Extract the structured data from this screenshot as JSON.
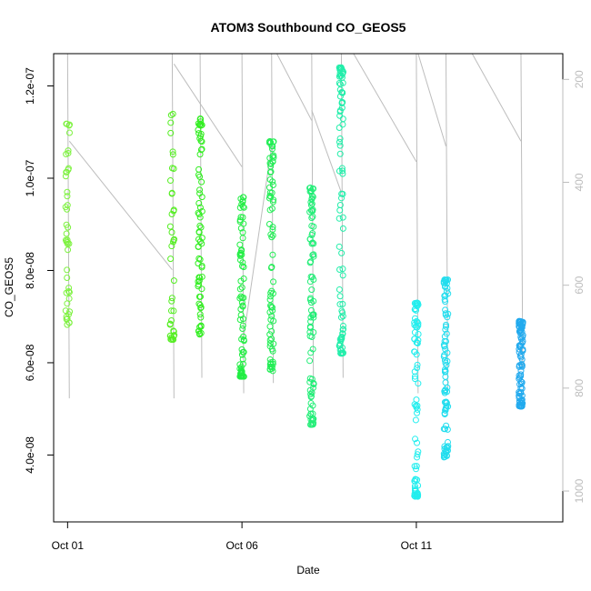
{
  "chart_data": {
    "type": "scatter",
    "title": "ATOM3 Southbound CO_GEOS5",
    "xlabel": "Date",
    "ylabel": "CO_GEOS5",
    "x_unit": "day of October",
    "xlim": [
      0.6,
      15.2
    ],
    "ylim": [
      2.55e-08,
      1.27e-07
    ],
    "x_ticks": [
      {
        "value": 1,
        "label": "Oct 01"
      },
      {
        "value": 6,
        "label": "Oct 06"
      },
      {
        "value": 11,
        "label": "Oct 11"
      }
    ],
    "y_ticks": [
      {
        "value": 4e-08,
        "label": "4.0e-08"
      },
      {
        "value": 6e-08,
        "label": "6.0e-08"
      },
      {
        "value": 8e-08,
        "label": "8.0e-08"
      },
      {
        "value": 1e-07,
        "label": "1.0e-07"
      },
      {
        "value": 1.2e-07,
        "label": "1.2e-07"
      }
    ],
    "right_axis": {
      "label": "",
      "reversed": true,
      "lim": [
        1060,
        150
      ],
      "ticks": [
        200,
        400,
        600,
        800,
        1000
      ],
      "color": "#bdbdbd"
    },
    "colors": {
      "axis": "#000000",
      "right_axis": "#bdbdbd",
      "altitude_track": "#bdbdbd"
    },
    "clusters": [
      {
        "x": 1.0,
        "y_min": 6.8e-08,
        "y_max": 1.12e-07,
        "color": "#7df23f",
        "n": 45
      },
      {
        "x": 4.0,
        "y_min": 6.5e-08,
        "y_max": 1.15e-07,
        "color": "#55ee22",
        "n": 40
      },
      {
        "x": 4.8,
        "y_min": 6.6e-08,
        "y_max": 1.13e-07,
        "color": "#33ee22",
        "n": 75
      },
      {
        "x": 6.0,
        "y_min": 5.7e-08,
        "y_max": 9.6e-08,
        "color": "#22ee44",
        "n": 80
      },
      {
        "x": 6.85,
        "y_min": 5.8e-08,
        "y_max": 1.08e-07,
        "color": "#22ee55",
        "n": 80
      },
      {
        "x": 8.0,
        "y_min": 4.65e-08,
        "y_max": 9.8e-08,
        "color": "#22ee77",
        "n": 90
      },
      {
        "x": 8.85,
        "y_min": 6.2e-08,
        "y_max": 1.24e-07,
        "color": "#22eeaa",
        "n": 90
      },
      {
        "x": 11.0,
        "y_min": 3.1e-08,
        "y_max": 7.3e-08,
        "color": "#22eeee",
        "n": 80
      },
      {
        "x": 11.85,
        "y_min": 3.95e-08,
        "y_max": 7.8e-08,
        "color": "#22ddee",
        "n": 90
      },
      {
        "x": 14.0,
        "y_min": 5.05e-08,
        "y_max": 6.9e-08,
        "color": "#22aaee",
        "n": 90
      }
    ],
    "altitude_tracks": [
      {
        "x_start": 1.0,
        "x_end": 1.05,
        "p_start": 150,
        "p_end": 820
      },
      {
        "x_start": 1.05,
        "x_end": 4.0,
        "p_start": 320,
        "p_end": 570
      },
      {
        "x_start": 4.0,
        "x_end": 4.05,
        "p_start": 150,
        "p_end": 820
      },
      {
        "x_start": 4.05,
        "x_end": 6.0,
        "p_start": 170,
        "p_end": 370
      },
      {
        "x_start": 4.8,
        "x_end": 4.85,
        "p_start": 150,
        "p_end": 780
      },
      {
        "x_start": 6.0,
        "x_end": 6.05,
        "p_start": 150,
        "p_end": 810
      },
      {
        "x_start": 6.05,
        "x_end": 6.85,
        "p_start": 700,
        "p_end": 330
      },
      {
        "x_start": 6.85,
        "x_end": 6.9,
        "p_start": 150,
        "p_end": 790
      },
      {
        "x_start": 7.0,
        "x_end": 8.0,
        "p_start": 150,
        "p_end": 280
      },
      {
        "x_start": 8.0,
        "x_end": 8.05,
        "p_start": 150,
        "p_end": 810
      },
      {
        "x_start": 8.0,
        "x_end": 8.85,
        "p_start": 260,
        "p_end": 420
      },
      {
        "x_start": 8.85,
        "x_end": 8.9,
        "p_start": 150,
        "p_end": 780
      },
      {
        "x_start": 9.2,
        "x_end": 11.0,
        "p_start": 150,
        "p_end": 360
      },
      {
        "x_start": 11.0,
        "x_end": 11.05,
        "p_start": 150,
        "p_end": 810
      },
      {
        "x_start": 11.05,
        "x_end": 11.85,
        "p_start": 150,
        "p_end": 330
      },
      {
        "x_start": 11.85,
        "x_end": 11.9,
        "p_start": 150,
        "p_end": 800
      },
      {
        "x_start": 12.6,
        "x_end": 14.0,
        "p_start": 150,
        "p_end": 320
      },
      {
        "x_start": 14.0,
        "x_end": 14.05,
        "p_start": 150,
        "p_end": 760
      }
    ]
  }
}
